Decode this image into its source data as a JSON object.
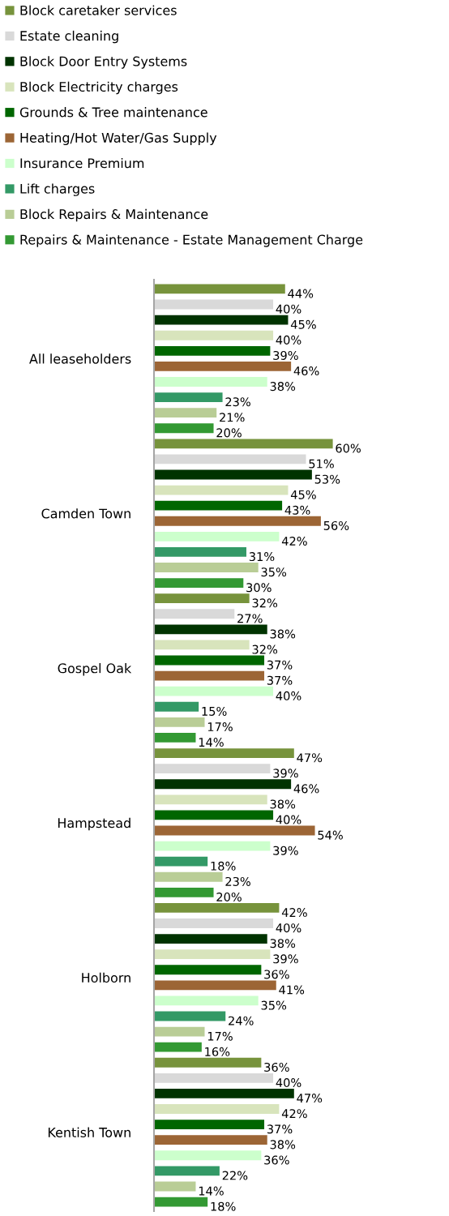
{
  "chart_data": {
    "type": "bar",
    "orientation": "horizontal",
    "categories": [
      "All leaseholders",
      "Camden Town",
      "Gospel Oak",
      "Hampstead",
      "Holborn",
      "Kentish Town"
    ],
    "series": [
      {
        "name": "Block caretaker services",
        "color": "#77933c",
        "values": [
          44,
          60,
          32,
          47,
          42,
          36
        ],
        "value_labels": [
          "44%",
          "60%",
          "32%",
          "47%",
          "42%",
          "36%"
        ]
      },
      {
        "name": "Estate cleaning",
        "color": "#d9d9d9",
        "values": [
          40,
          51,
          27,
          39,
          40,
          40
        ],
        "value_labels": [
          "40%",
          "51%",
          "27%",
          "39%",
          "40%",
          "40%"
        ]
      },
      {
        "name": "Block Door Entry Systems",
        "color": "#003300",
        "values": [
          45,
          53,
          38,
          46,
          38,
          47
        ],
        "value_labels": [
          "45%",
          "53%",
          "38%",
          "46%",
          "38%",
          "47%"
        ]
      },
      {
        "name": "Block Electricity charges",
        "color": "#d8e4bc",
        "values": [
          40,
          45,
          32,
          38,
          39,
          42
        ],
        "value_labels": [
          "40%",
          "45%",
          "32%",
          "38%",
          "39%",
          "42%"
        ]
      },
      {
        "name": "Grounds & Tree maintenance",
        "color": "#006600",
        "values": [
          39,
          43,
          37,
          40,
          36,
          37
        ],
        "value_labels": [
          "39%",
          "43%",
          "37%",
          "40%",
          "36%",
          "37%"
        ]
      },
      {
        "name": "Heating/Hot Water/Gas Supply",
        "color": "#9c6535",
        "values": [
          46,
          56,
          37,
          54,
          41,
          38
        ],
        "value_labels": [
          "46%",
          "56%",
          "37%",
          "54%",
          "41%",
          "38%"
        ]
      },
      {
        "name": "Insurance Premium",
        "color": "#ccffcc",
        "values": [
          38,
          42,
          40,
          39,
          35,
          36
        ],
        "value_labels": [
          "38%",
          "42%",
          "40%",
          "39%",
          "35%",
          "36%"
        ]
      },
      {
        "name": "Lift charges",
        "color": "#339966",
        "values": [
          23,
          31,
          15,
          18,
          24,
          22
        ],
        "value_labels": [
          "23%",
          "31%",
          "15%",
          "18%",
          "24%",
          "22%"
        ]
      },
      {
        "name": "Block Repairs & Maintenance",
        "color": "#b9cd96",
        "values": [
          21,
          35,
          17,
          23,
          17,
          14
        ],
        "value_labels": [
          "21%",
          "35%",
          "17%",
          "23%",
          "17%",
          "14%"
        ]
      },
      {
        "name": "Repairs & Maintenance - Estate Management Charge",
        "color": "#339933",
        "values": [
          20,
          30,
          14,
          20,
          16,
          18
        ],
        "value_labels": [
          "20%",
          "30%",
          "14%",
          "20%",
          "16%",
          "18%"
        ]
      }
    ],
    "legend": "top left",
    "tick_labels": "y"
  }
}
